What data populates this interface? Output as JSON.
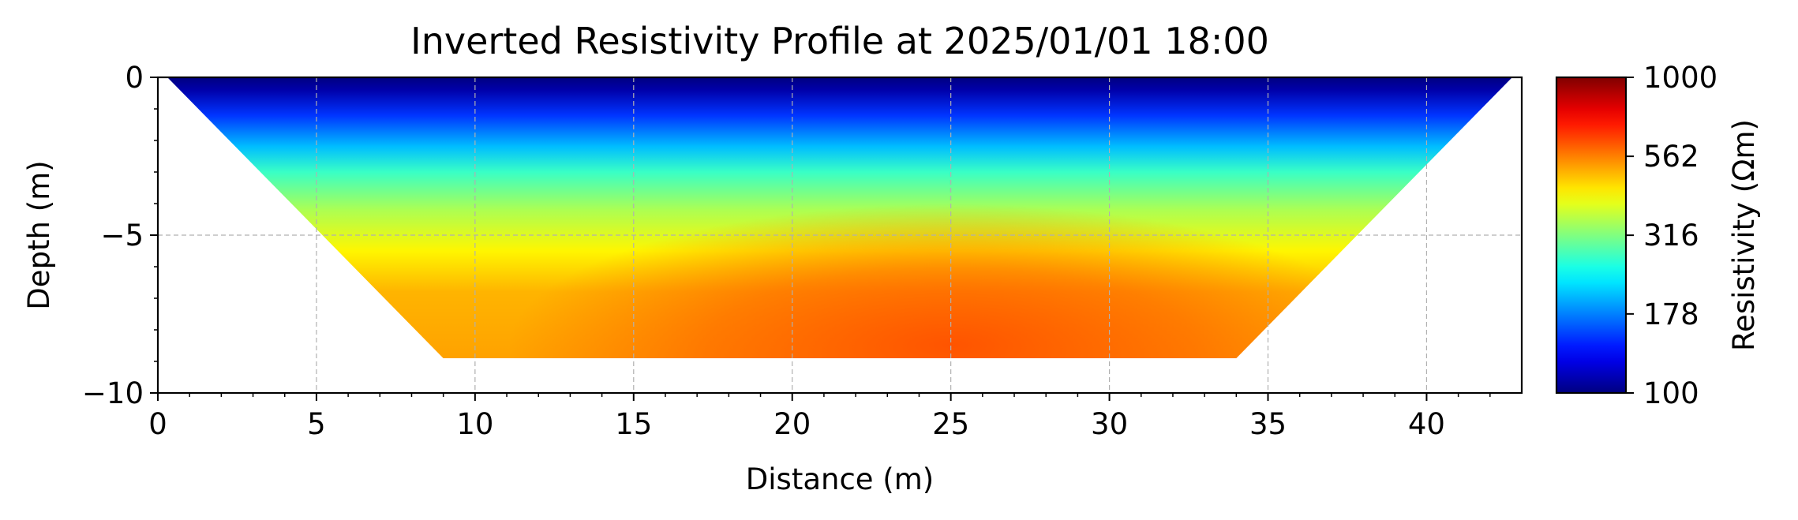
{
  "chart_data": {
    "type": "heatmap",
    "title": "Inverted Resistivity Profile at 2025/01/01 18:00",
    "xlabel": "Distance (m)",
    "ylabel": "Depth (m)",
    "xlim": [
      0,
      43
    ],
    "ylim": [
      -10,
      0
    ],
    "x_ticks": [
      "0",
      "5",
      "10",
      "15",
      "20",
      "25",
      "30",
      "35",
      "40"
    ],
    "y_ticks": [
      "0",
      "−5",
      "−10"
    ],
    "grid": true,
    "colorbar": {
      "label": "Resistivity (Ωm)",
      "scale": "log",
      "range": [
        100,
        1000
      ],
      "ticks": [
        "1000",
        "562",
        "316",
        "178",
        "100"
      ],
      "colormap": "jet"
    },
    "section": {
      "top_left": [
        0.3,
        0
      ],
      "top_right": [
        42.7,
        0
      ],
      "bottom_left": [
        9,
        -8.9
      ],
      "bottom_right": [
        34,
        -8.9
      ]
    },
    "depth_layers": [
      {
        "depth": 0,
        "resistivity": 100
      },
      {
        "depth": -0.4,
        "resistivity": 110
      },
      {
        "depth": -1.2,
        "resistivity": 150
      },
      {
        "depth": -2.2,
        "resistivity": 205
      },
      {
        "depth": -3.0,
        "resistivity": 270
      },
      {
        "depth": -4.2,
        "resistivity": 350
      },
      {
        "depth": -5.5,
        "resistivity": 430
      },
      {
        "depth": -6.8,
        "resistivity": 500
      },
      {
        "depth": -8.9,
        "resistivity": 520
      }
    ],
    "anomaly": {
      "center_x": 25,
      "center_depth": -8.5,
      "resistivity": 620
    }
  }
}
